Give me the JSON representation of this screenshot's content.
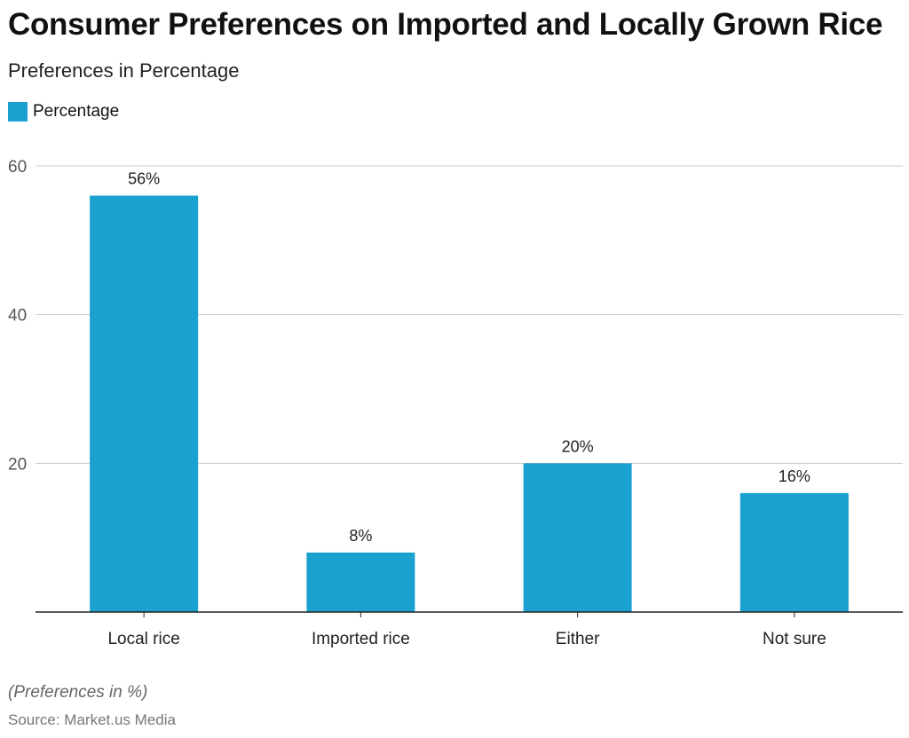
{
  "chart_data": {
    "type": "bar",
    "title": "Consumer Preferences on Imported and Locally Grown Rice",
    "subtitle": "Preferences in Percentage",
    "legend": [
      "Percentage"
    ],
    "categories": [
      "Local rice",
      "Imported rice",
      "Either",
      "Not sure"
    ],
    "series": [
      {
        "name": "Percentage",
        "values": [
          56,
          8,
          20,
          16
        ]
      }
    ],
    "data_labels": [
      "56%",
      "8%",
      "20%",
      "16%"
    ],
    "ylim": [
      0,
      60
    ],
    "yticks": [
      20,
      40,
      60
    ],
    "grid": true,
    "legend_position": "top-left",
    "xlabel": "",
    "ylabel": ""
  },
  "colors": {
    "bar": "#1aa1cf",
    "grid": "#cccccc",
    "axis": "#222222"
  },
  "footnote": "(Preferences in %)",
  "source": "Source: Market.us Media"
}
